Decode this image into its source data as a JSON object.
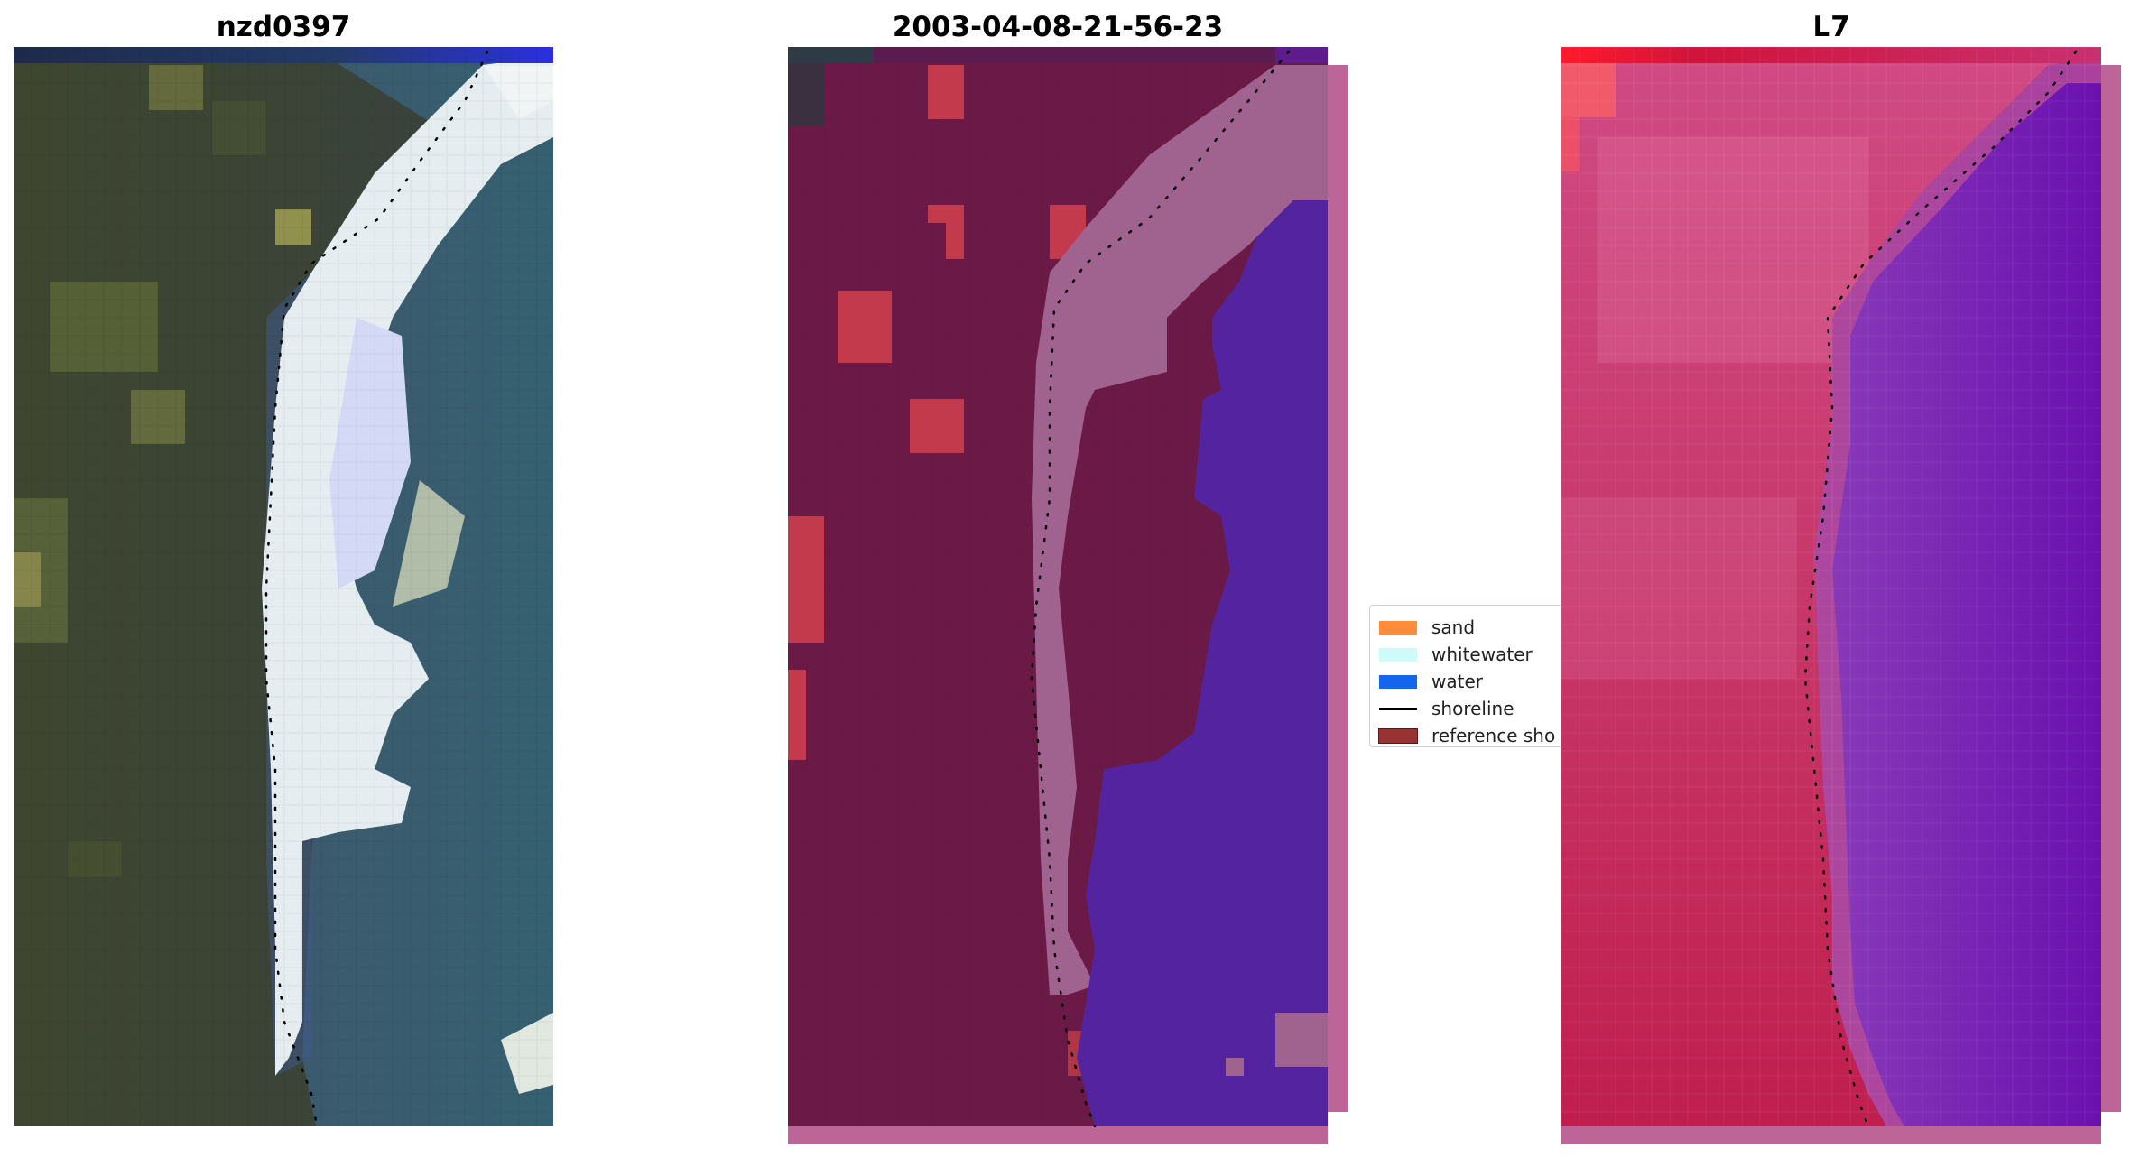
{
  "panels": [
    {
      "title": "nzd0397",
      "content": "rgb-satellite-image"
    },
    {
      "title": "2003-04-08-21-56-23",
      "content": "classified-image"
    },
    {
      "title": "L7",
      "content": "index-image"
    }
  ],
  "legend": {
    "items": [
      {
        "label": "sand",
        "color": "#ff8c3a",
        "kind": "patch"
      },
      {
        "label": "whitewater",
        "color": "#ccfbfa",
        "kind": "patch"
      },
      {
        "label": "water",
        "color": "#1565ee",
        "kind": "patch"
      },
      {
        "label": "shoreline",
        "color": "#000000",
        "kind": "line"
      },
      {
        "label": "reference sho",
        "color": "#993333",
        "kind": "patch"
      }
    ]
  }
}
